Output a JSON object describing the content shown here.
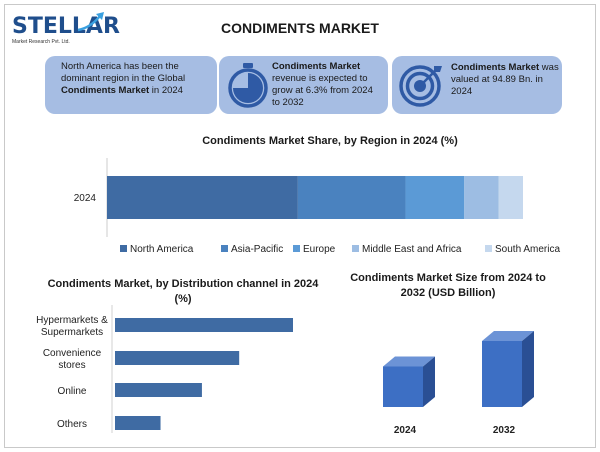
{
  "header": {
    "logo_text": "STELLAR",
    "logo_subtext": "Market Research Pvt. Ltd.",
    "title": "CONDIMENTS MARKET"
  },
  "cards": [
    {
      "icon": "globe-icon",
      "text_pre": "North America has been the dominant region in the Global ",
      "text_bold": "Condiments Market",
      "text_post": " in 2024"
    },
    {
      "icon": "stopwatch-icon",
      "text_bold": "Condiments Market",
      "text_post": " revenue is expected to grow at 6.3% from 2024 to 2032"
    },
    {
      "icon": "target-icon",
      "text_bold": "Condiments Market",
      "text_post": " was valued at 94.89 Bn. in 2024"
    }
  ],
  "colors": {
    "card_bg": "#a6bde3",
    "bar_dark": "#3f6ba3",
    "bar_3d_front": "#3d6fc4",
    "bar_3d_top": "#6c93d6",
    "bar_3d_side": "#2a4f94"
  },
  "chart_data": [
    {
      "type": "bar",
      "orientation": "horizontal-stacked",
      "title": "Condiments Market Share, by Region in 2024 (%)",
      "categories": [
        "2024"
      ],
      "series": [
        {
          "name": "North America",
          "values": [
            39
          ],
          "color": "#3f6ba3"
        },
        {
          "name": "Asia-Pacific",
          "values": [
            22
          ],
          "color": "#4a82bf"
        },
        {
          "name": "Europe",
          "values": [
            12
          ],
          "color": "#5b9ad6"
        },
        {
          "name": "Middle East and Africa",
          "values": [
            7
          ],
          "color": "#9dbde3"
        },
        {
          "name": "South America",
          "values": [
            5
          ],
          "color": "#c5d8ee"
        }
      ],
      "legend": "bottom"
    },
    {
      "type": "bar",
      "orientation": "horizontal",
      "title": "Condiments Market, by Distribution channel in 2024 (%)",
      "categories": [
        [
          "Hypermarkets &",
          "Supermarkets"
        ],
        [
          "Convenience",
          "stores"
        ],
        [
          "Online"
        ],
        [
          "Others"
        ]
      ],
      "values": [
        43,
        30,
        21,
        11
      ]
    },
    {
      "type": "bar",
      "orientation": "vertical-3d",
      "title": "Condiments Market Size from 2024 to 2032 (USD Billion)",
      "categories": [
        "2024",
        "2032"
      ],
      "values": [
        94.89,
        154.6
      ]
    }
  ]
}
